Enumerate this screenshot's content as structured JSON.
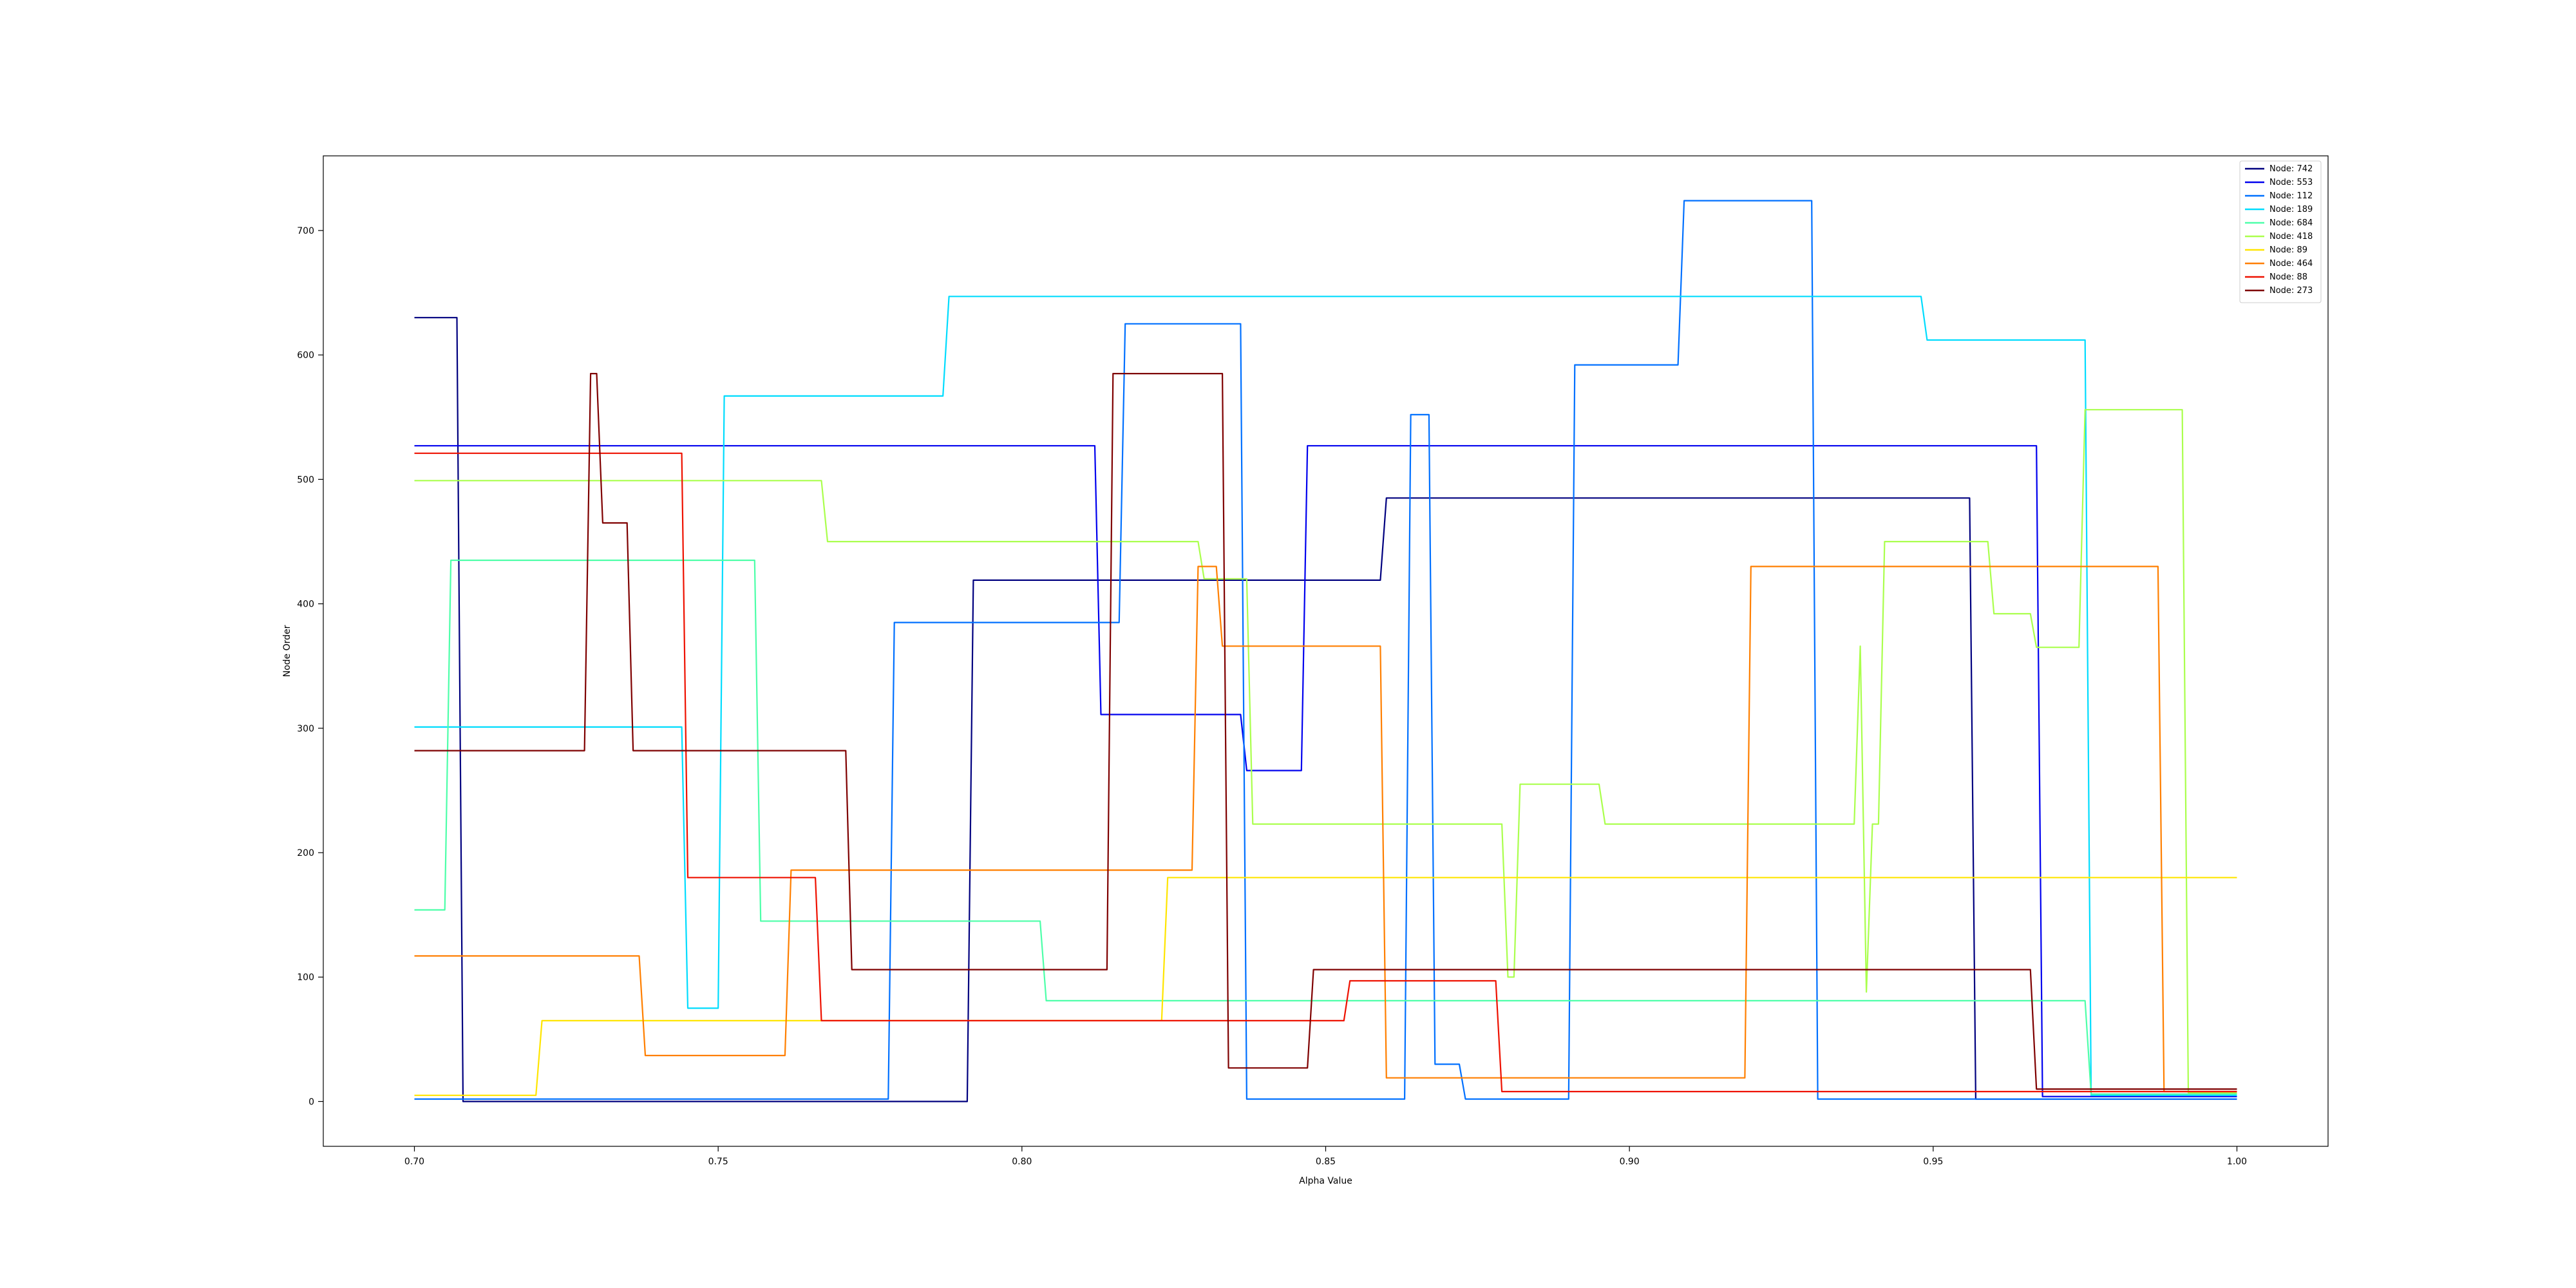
{
  "chart_data": {
    "type": "line",
    "xlabel": "Alpha Value",
    "ylabel": "Node Order",
    "xlim": [
      0.685,
      1.015
    ],
    "ylim": [
      -36,
      760
    ],
    "xticks": [
      0.7,
      0.75,
      0.8,
      0.85,
      0.9,
      0.95,
      1.0
    ],
    "xtick_labels": [
      "0.70",
      "0.75",
      "0.80",
      "0.85",
      "0.90",
      "0.95",
      "1.00"
    ],
    "yticks": [
      0,
      100,
      200,
      300,
      400,
      500,
      600,
      700
    ],
    "ytick_labels": [
      "0",
      "100",
      "200",
      "300",
      "400",
      "500",
      "600",
      "700"
    ],
    "grid": false,
    "legend_position": "top-right",
    "series": [
      {
        "name": "Node: 742",
        "color": "#00007f",
        "x": [
          0.7,
          0.707,
          0.708,
          0.791,
          0.792,
          0.859,
          0.86,
          0.956,
          0.957,
          1.0
        ],
        "y": [
          630,
          630,
          0,
          0,
          419,
          419,
          485,
          485,
          2,
          2
        ]
      },
      {
        "name": "Node: 553",
        "color": "#0000ee",
        "x": [
          0.7,
          0.812,
          0.813,
          0.836,
          0.837,
          0.846,
          0.847,
          0.967,
          0.968,
          1.0
        ],
        "y": [
          527,
          527,
          311,
          311,
          266,
          266,
          527,
          527,
          4,
          4
        ]
      },
      {
        "name": "Node: 112",
        "color": "#0070ff",
        "x": [
          0.7,
          0.778,
          0.779,
          0.816,
          0.817,
          0.836,
          0.837,
          0.863,
          0.864,
          0.867,
          0.868,
          0.872,
          0.873,
          0.89,
          0.891,
          0.908,
          0.909,
          0.93,
          0.931,
          1.0
        ],
        "y": [
          2,
          2,
          385,
          385,
          625,
          625,
          2,
          2,
          552,
          552,
          30,
          30,
          2,
          2,
          592,
          592,
          724,
          724,
          2,
          2
        ]
      },
      {
        "name": "Node: 189",
        "color": "#00dcfe",
        "x": [
          0.7,
          0.744,
          0.745,
          0.75,
          0.751,
          0.787,
          0.788,
          0.948,
          0.949,
          0.975,
          0.976,
          1.0
        ],
        "y": [
          301,
          301,
          75,
          75,
          567,
          567,
          647,
          647,
          612,
          612,
          5,
          5
        ]
      },
      {
        "name": "Node: 684",
        "color": "#4dffa9",
        "x": [
          0.7,
          0.705,
          0.706,
          0.756,
          0.757,
          0.803,
          0.804,
          0.975,
          0.976,
          1.0
        ],
        "y": [
          154,
          154,
          435,
          435,
          145,
          145,
          81,
          81,
          6,
          6
        ]
      },
      {
        "name": "Node: 418",
        "color": "#aaff4d",
        "x": [
          0.7,
          0.767,
          0.768,
          0.829,
          0.83,
          0.837,
          0.838,
          0.879,
          0.88,
          0.881,
          0.882,
          0.895,
          0.896,
          0.937,
          0.938,
          0.939,
          0.94,
          0.941,
          0.942,
          0.959,
          0.96,
          0.966,
          0.967,
          0.974,
          0.975,
          0.991,
          0.992,
          1.0
        ],
        "y": [
          499,
          499,
          450,
          450,
          420,
          420,
          223,
          223,
          100,
          100,
          255,
          255,
          223,
          223,
          366,
          88,
          223,
          223,
          450,
          450,
          392,
          392,
          365,
          365,
          556,
          556,
          7,
          7
        ]
      },
      {
        "name": "Node: 89",
        "color": "#ffe500",
        "x": [
          0.7,
          0.72,
          0.721,
          0.823,
          0.824,
          1.0
        ],
        "y": [
          5,
          5,
          65,
          65,
          180,
          180
        ]
      },
      {
        "name": "Node: 464",
        "color": "#ff7f00",
        "x": [
          0.7,
          0.737,
          0.738,
          0.761,
          0.762,
          0.828,
          0.829,
          0.832,
          0.833,
          0.859,
          0.86,
          0.919,
          0.92,
          0.987,
          0.988,
          1.0
        ],
        "y": [
          117,
          117,
          37,
          37,
          186,
          186,
          430,
          430,
          366,
          366,
          19,
          19,
          430,
          430,
          8,
          8
        ]
      },
      {
        "name": "Node: 88",
        "color": "#ee1100",
        "x": [
          0.7,
          0.744,
          0.745,
          0.766,
          0.767,
          0.853,
          0.854,
          0.878,
          0.879,
          1.0
        ],
        "y": [
          521,
          521,
          180,
          180,
          65,
          65,
          97,
          97,
          8,
          8
        ]
      },
      {
        "name": "Node: 273",
        "color": "#7f0000",
        "x": [
          0.7,
          0.728,
          0.729,
          0.73,
          0.731,
          0.735,
          0.736,
          0.771,
          0.772,
          0.814,
          0.815,
          0.833,
          0.834,
          0.847,
          0.848,
          0.966,
          0.967,
          1.0
        ],
        "y": [
          282,
          282,
          585,
          585,
          465,
          465,
          282,
          282,
          106,
          106,
          585,
          585,
          27,
          27,
          106,
          106,
          10,
          10
        ]
      }
    ]
  }
}
